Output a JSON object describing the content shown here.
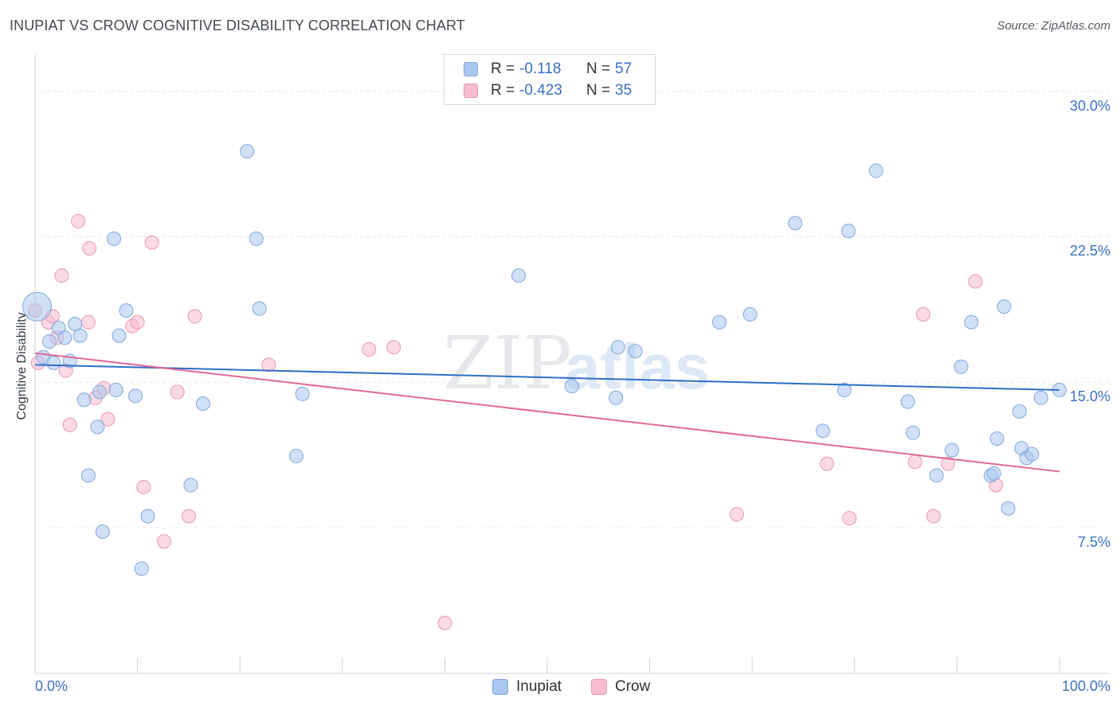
{
  "title": "INUPIAT VS CROW COGNITIVE DISABILITY CORRELATION CHART",
  "source": "Source: ZipAtlas.com",
  "watermark": {
    "zip": "ZIP",
    "atlas": "atlas"
  },
  "legend": {
    "r_label": "R =",
    "n_label": "N =",
    "rows": [
      {
        "name": "Inupiat",
        "r": "-0.118",
        "n": "57"
      },
      {
        "name": "Crow",
        "r": "-0.423",
        "n": "35"
      }
    ]
  },
  "colors": {
    "inupiat_fill": "#a9c8f0",
    "inupiat_stroke": "#7fa7dc",
    "inupiat_line": "#2d6fc7",
    "crow_fill": "#f7bcd0",
    "crow_stroke": "#eb95b3",
    "crow_line": "#e0689a",
    "axis_text": "#3a70c4"
  },
  "chart_data": {
    "type": "scatter",
    "title": "INUPIAT VS CROW COGNITIVE DISABILITY CORRELATION CHART",
    "xlabel": "",
    "ylabel": "Cognitive Disability",
    "xlim": [
      0,
      100
    ],
    "ylim": [
      0,
      31.5
    ],
    "x_tick_labels": [
      "0.0%",
      "100.0%"
    ],
    "y_ticks": [
      7.5,
      15.0,
      22.5,
      30.0
    ],
    "y_tick_labels": [
      "7.5%",
      "15.0%",
      "22.5%",
      "30.0%"
    ],
    "grid": "horizontal dashed",
    "legend_position": "top-center",
    "series": [
      {
        "name": "Inupiat",
        "r": -0.118,
        "n": 57,
        "trend": {
          "x": [
            0,
            100
          ],
          "y": [
            15.9,
            14.6
          ]
        },
        "points": [
          {
            "x": 0.2,
            "y": 18.9,
            "big": true
          },
          {
            "x": 0.8,
            "y": 16.3
          },
          {
            "x": 1.4,
            "y": 17.1
          },
          {
            "x": 1.8,
            "y": 16.0
          },
          {
            "x": 2.3,
            "y": 17.8
          },
          {
            "x": 2.9,
            "y": 17.3
          },
          {
            "x": 3.4,
            "y": 16.1
          },
          {
            "x": 3.9,
            "y": 18.0
          },
          {
            "x": 4.4,
            "y": 17.4
          },
          {
            "x": 4.8,
            "y": 14.1
          },
          {
            "x": 5.2,
            "y": 10.2
          },
          {
            "x": 6.1,
            "y": 12.7
          },
          {
            "x": 6.3,
            "y": 14.5
          },
          {
            "x": 6.6,
            "y": 7.3
          },
          {
            "x": 7.7,
            "y": 22.4
          },
          {
            "x": 7.9,
            "y": 14.6
          },
          {
            "x": 8.2,
            "y": 17.4
          },
          {
            "x": 8.9,
            "y": 18.7
          },
          {
            "x": 9.8,
            "y": 14.3
          },
          {
            "x": 10.4,
            "y": 5.4
          },
          {
            "x": 11.0,
            "y": 8.1
          },
          {
            "x": 15.2,
            "y": 9.7
          },
          {
            "x": 16.4,
            "y": 13.9
          },
          {
            "x": 20.7,
            "y": 26.9
          },
          {
            "x": 21.6,
            "y": 22.4
          },
          {
            "x": 21.9,
            "y": 18.8
          },
          {
            "x": 25.5,
            "y": 11.2
          },
          {
            "x": 26.1,
            "y": 14.4
          },
          {
            "x": 47.2,
            "y": 20.5
          },
          {
            "x": 52.4,
            "y": 14.8
          },
          {
            "x": 56.7,
            "y": 14.2
          },
          {
            "x": 56.9,
            "y": 16.8
          },
          {
            "x": 58.6,
            "y": 16.6
          },
          {
            "x": 66.8,
            "y": 18.1
          },
          {
            "x": 69.8,
            "y": 18.5
          },
          {
            "x": 74.2,
            "y": 23.2
          },
          {
            "x": 76.9,
            "y": 12.5
          },
          {
            "x": 79.0,
            "y": 14.6
          },
          {
            "x": 79.4,
            "y": 22.8
          },
          {
            "x": 82.1,
            "y": 25.9
          },
          {
            "x": 85.2,
            "y": 14.0
          },
          {
            "x": 85.7,
            "y": 12.4
          },
          {
            "x": 88.0,
            "y": 10.2
          },
          {
            "x": 89.5,
            "y": 11.5
          },
          {
            "x": 90.4,
            "y": 15.8
          },
          {
            "x": 91.4,
            "y": 18.1
          },
          {
            "x": 93.3,
            "y": 10.2
          },
          {
            "x": 93.6,
            "y": 10.3
          },
          {
            "x": 93.9,
            "y": 12.1
          },
          {
            "x": 94.6,
            "y": 18.9
          },
          {
            "x": 95.0,
            "y": 8.5
          },
          {
            "x": 96.1,
            "y": 13.5
          },
          {
            "x": 96.3,
            "y": 11.6
          },
          {
            "x": 96.8,
            "y": 11.1
          },
          {
            "x": 97.3,
            "y": 11.3
          },
          {
            "x": 98.2,
            "y": 14.2
          },
          {
            "x": 100.0,
            "y": 14.6
          }
        ]
      },
      {
        "name": "Crow",
        "r": -0.423,
        "n": 35,
        "trend": {
          "x": [
            0,
            100
          ],
          "y": [
            16.5,
            10.4
          ]
        },
        "points": [
          {
            "x": 0.3,
            "y": 16.0
          },
          {
            "x": 1.3,
            "y": 18.1
          },
          {
            "x": 1.7,
            "y": 18.4
          },
          {
            "x": 2.1,
            "y": 17.3
          },
          {
            "x": 2.6,
            "y": 20.5
          },
          {
            "x": 3.0,
            "y": 15.6
          },
          {
            "x": 3.4,
            "y": 12.8
          },
          {
            "x": 4.2,
            "y": 23.3
          },
          {
            "x": 5.3,
            "y": 21.9
          },
          {
            "x": 5.2,
            "y": 18.1
          },
          {
            "x": 5.9,
            "y": 14.2
          },
          {
            "x": 6.7,
            "y": 14.7
          },
          {
            "x": 7.1,
            "y": 13.1
          },
          {
            "x": 9.5,
            "y": 17.9
          },
          {
            "x": 10.0,
            "y": 18.1
          },
          {
            "x": 10.6,
            "y": 9.6
          },
          {
            "x": 11.4,
            "y": 22.2
          },
          {
            "x": 12.6,
            "y": 6.8
          },
          {
            "x": 13.9,
            "y": 14.5
          },
          {
            "x": 15.0,
            "y": 8.1
          },
          {
            "x": 15.6,
            "y": 18.4
          },
          {
            "x": 22.8,
            "y": 15.9
          },
          {
            "x": 32.6,
            "y": 16.7
          },
          {
            "x": 35.0,
            "y": 16.8
          },
          {
            "x": 40.0,
            "y": 2.6
          },
          {
            "x": 68.5,
            "y": 8.2
          },
          {
            "x": 77.3,
            "y": 10.8
          },
          {
            "x": 79.5,
            "y": 8.0
          },
          {
            "x": 85.9,
            "y": 10.9
          },
          {
            "x": 86.7,
            "y": 18.5
          },
          {
            "x": 87.7,
            "y": 8.1
          },
          {
            "x": 89.1,
            "y": 10.8
          },
          {
            "x": 91.8,
            "y": 20.2
          },
          {
            "x": 93.8,
            "y": 9.7
          },
          {
            "x": 0.0,
            "y": 18.7
          }
        ]
      }
    ]
  }
}
